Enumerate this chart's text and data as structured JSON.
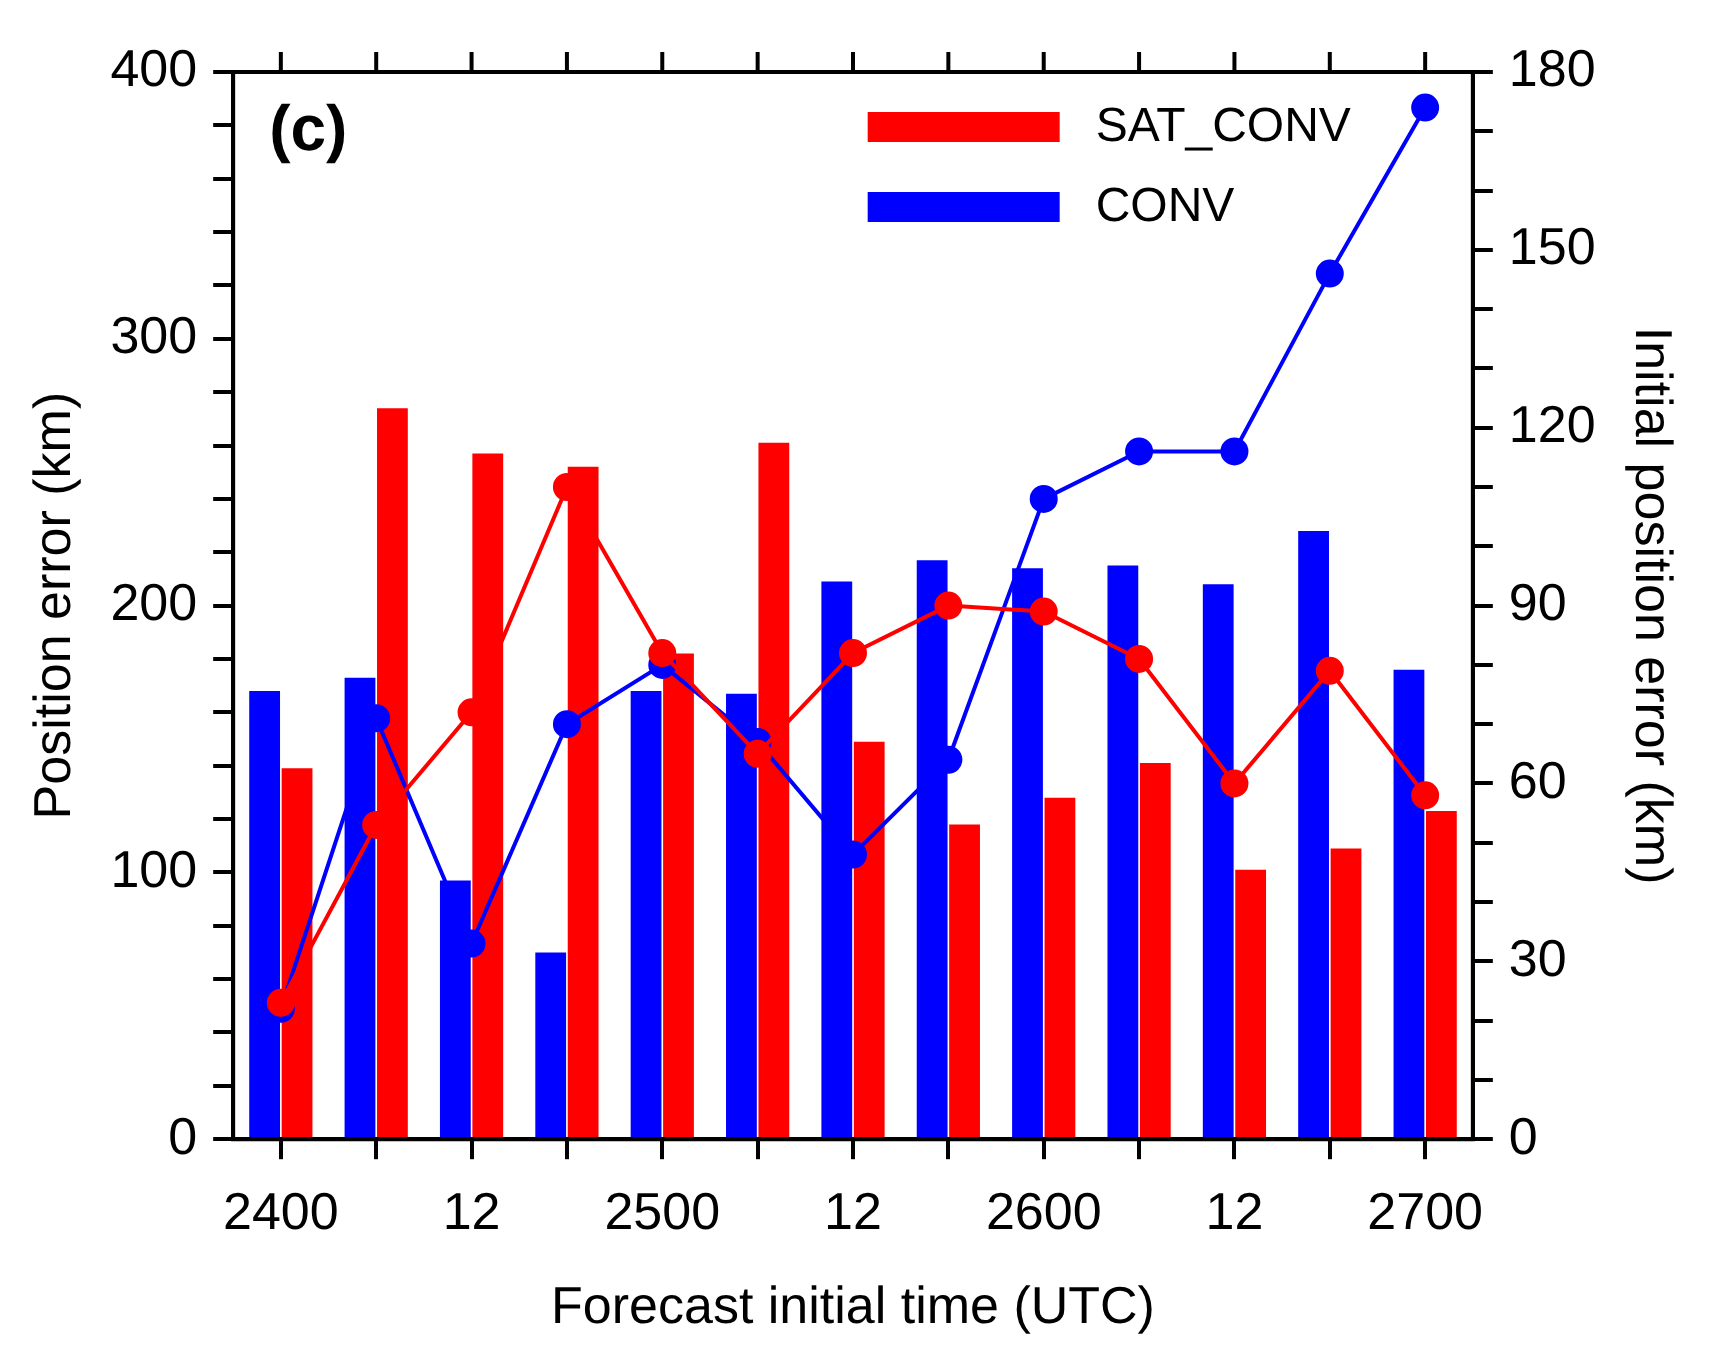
{
  "chart_data": {
    "type": "bar",
    "xlabel": "Forecast initial time (UTC)",
    "ylabel": "Position error (km)",
    "y2label": "Initial position error (km)",
    "annotations": [
      "(c)"
    ],
    "categories": [
      "2400",
      null,
      "12",
      null,
      "2500",
      null,
      "12",
      null,
      "2600",
      null,
      "12",
      null,
      "2700"
    ],
    "series": [
      {
        "name": "SAT_CONV",
        "color": "#ff0000",
        "values": [
          139,
          274,
          257,
          252,
          182,
          261,
          149,
          118,
          128,
          141,
          101,
          109,
          123
        ]
      },
      {
        "name": "CONV",
        "color": "#0000ff",
        "values": [
          168,
          173,
          97,
          70,
          168,
          167,
          209,
          217,
          214,
          215,
          208,
          228,
          176
        ]
      },
      {
        "type": "line",
        "axis": "y2",
        "color": "#ff0000",
        "values": [
          23,
          53,
          72,
          110,
          82,
          65,
          82,
          90,
          89,
          81,
          60,
          79,
          58
        ]
      },
      {
        "type": "line",
        "axis": "y2",
        "color": "#0000ff",
        "values": [
          22,
          71,
          33,
          70,
          80,
          67,
          48,
          64,
          108,
          116,
          116,
          146,
          174
        ]
      }
    ],
    "ylim": [
      0,
      400
    ],
    "yticks": [
      0,
      {
        "value": 20,
        "label": null
      },
      {
        "value": 40,
        "label": null
      },
      {
        "value": 60,
        "label": null
      },
      {
        "value": 80,
        "label": null
      },
      100,
      {
        "value": 120,
        "label": null
      },
      {
        "value": 140,
        "label": null
      },
      {
        "value": 160,
        "label": null
      },
      {
        "value": 180,
        "label": null
      },
      200,
      {
        "value": 220,
        "label": null
      },
      {
        "value": 240,
        "label": null
      },
      {
        "value": 260,
        "label": null
      },
      {
        "value": 280,
        "label": null
      },
      300,
      {
        "value": 320,
        "label": null
      },
      {
        "value": 340,
        "label": null
      },
      {
        "value": 360,
        "label": null
      },
      {
        "value": 380,
        "label": null
      },
      400
    ],
    "y2lim": [
      0,
      180
    ],
    "y2ticks": [
      0,
      {
        "value": 10,
        "label": null
      },
      {
        "value": 20,
        "label": null
      },
      30,
      {
        "value": 40,
        "label": null
      },
      {
        "value": 50,
        "label": null
      },
      60,
      {
        "value": 70,
        "label": null
      },
      {
        "value": 80,
        "label": null
      },
      90,
      {
        "value": 100,
        "label": null
      },
      {
        "value": 110,
        "label": null
      },
      120,
      {
        "value": 130,
        "label": null
      },
      {
        "value": 140,
        "label": null
      },
      150,
      {
        "value": 160,
        "label": null
      },
      {
        "value": 170,
        "label": null
      },
      180
    ],
    "legend": "top right",
    "marker": "circle",
    "grid": false
  }
}
